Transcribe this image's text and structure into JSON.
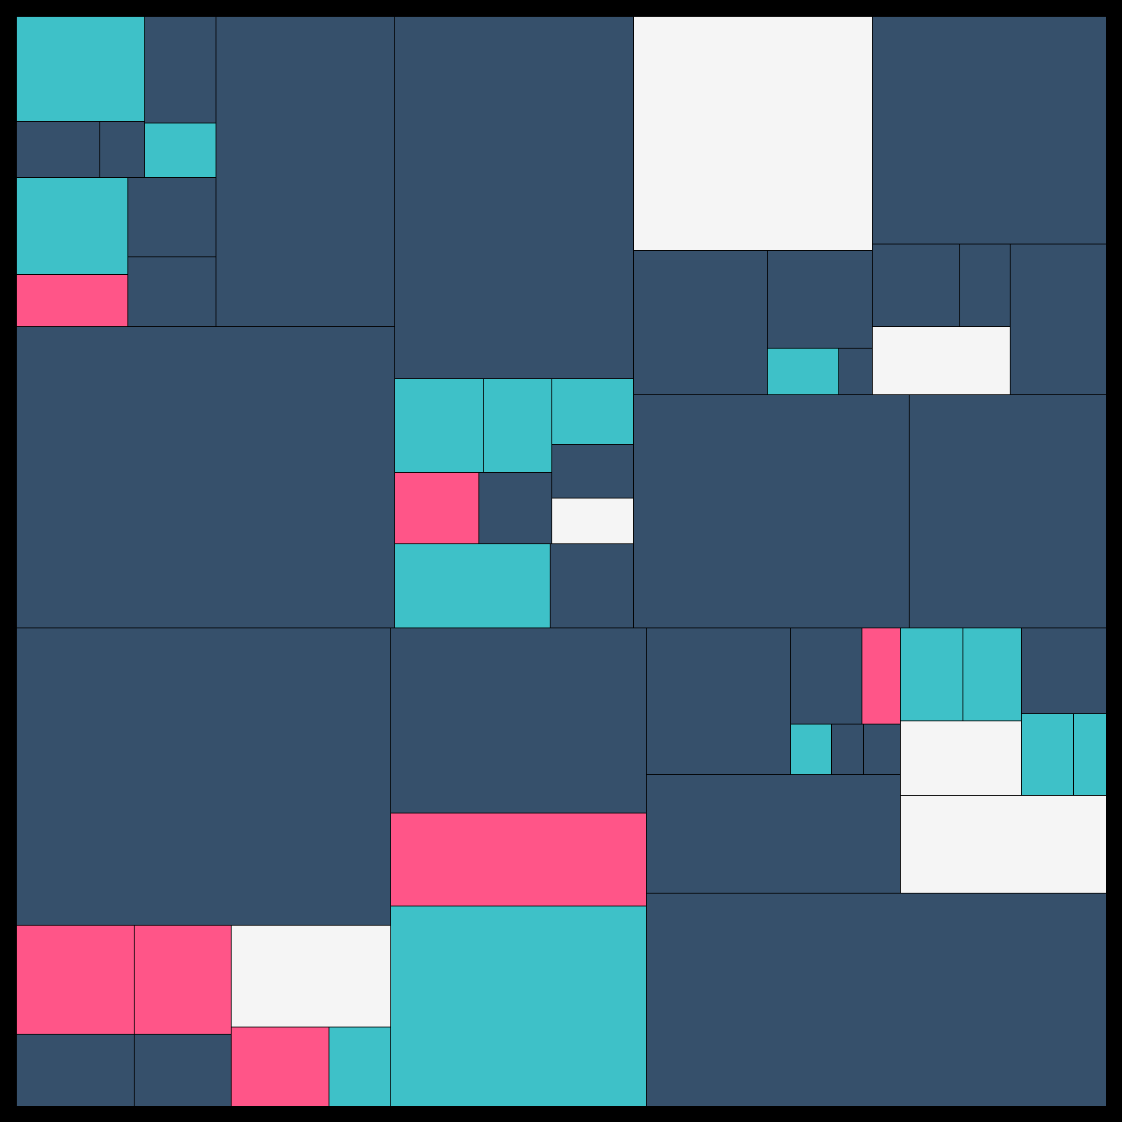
{
  "colors": {
    "frame": "#000000",
    "navy": "#36506B",
    "teal": "#3EC1C8",
    "pink": "#FF5588",
    "white": "#F5F5F5"
  },
  "composition": {
    "style": "rectangular color-block mosaic",
    "tile_count": 65
  }
}
